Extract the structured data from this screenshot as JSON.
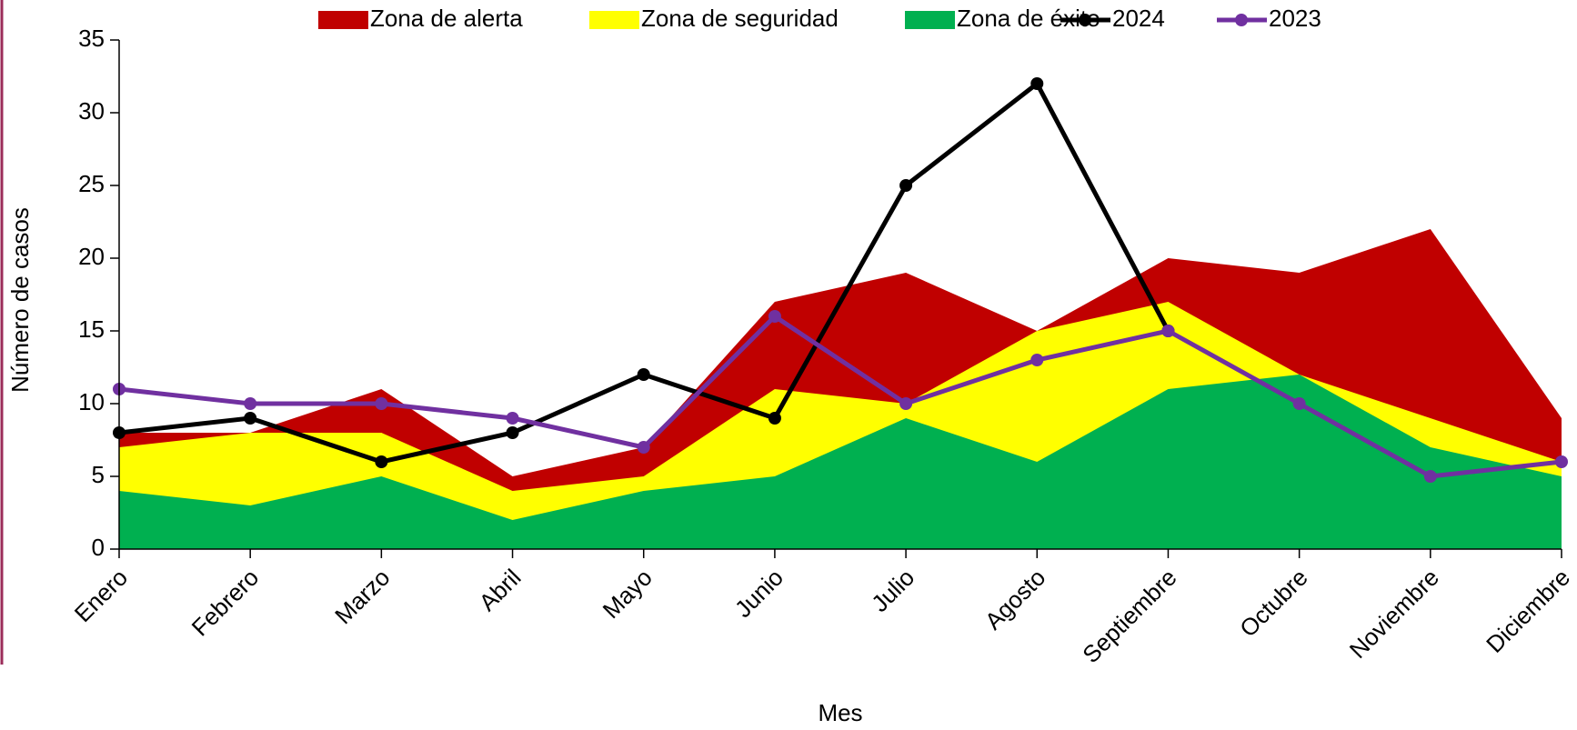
{
  "chart_data": {
    "type": "area_line",
    "x_label": "Mes",
    "y_label": "Número de casos",
    "categories": [
      "Enero",
      "Febrero",
      "Marzo",
      "Abril",
      "Mayo",
      "Junio",
      "Julio",
      "Agosto",
      "Septiembre",
      "Octubre",
      "Noviembre",
      "Diciembre"
    ],
    "series": [
      {
        "name": "Zona de alerta",
        "kind": "area",
        "color": "#c00000",
        "values": [
          8,
          8,
          11,
          5,
          7,
          17,
          19,
          15,
          20,
          19,
          22,
          9
        ]
      },
      {
        "name": "Zona de seguridad",
        "kind": "area",
        "color": "#ffff00",
        "values": [
          7,
          8,
          8,
          4,
          5,
          11,
          10,
          15,
          17,
          12,
          9,
          6
        ]
      },
      {
        "name": "Zona de éxito",
        "kind": "area",
        "color": "#00b050",
        "values": [
          4,
          3,
          5,
          2,
          4,
          5,
          9,
          6,
          11,
          12,
          7,
          5
        ]
      },
      {
        "name": "2024",
        "kind": "line",
        "color": "#000000",
        "values": [
          8,
          9,
          6,
          8,
          12,
          9,
          25,
          32,
          15,
          null,
          null,
          null
        ]
      },
      {
        "name": "2023",
        "kind": "line",
        "color": "#7030a0",
        "values": [
          11,
          10,
          10,
          9,
          7,
          16,
          10,
          13,
          15,
          10,
          5,
          6
        ]
      }
    ],
    "ylim": [
      0,
      35
    ],
    "yticks": [
      0,
      5,
      10,
      15,
      20,
      25,
      30,
      35
    ],
    "legend": "top"
  }
}
